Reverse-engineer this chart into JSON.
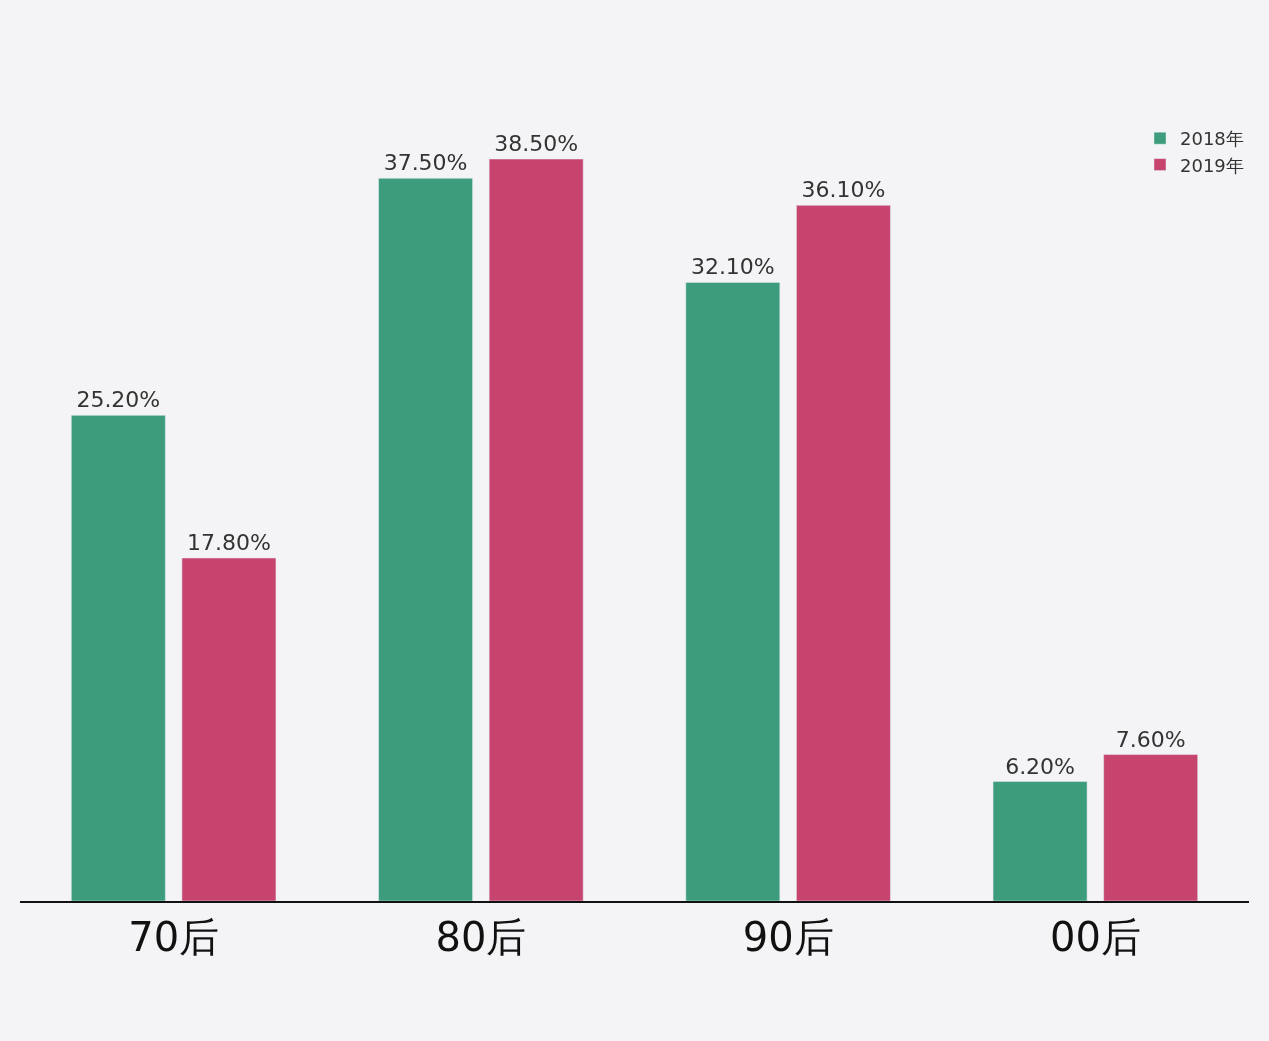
{
  "chart_data": {
    "type": "bar",
    "categories": [
      "70后",
      "80后",
      "90后",
      "00后"
    ],
    "series": [
      {
        "name": "2018年",
        "color": "#3d9c7c",
        "values": [
          25.2,
          37.5,
          32.1,
          6.2
        ],
        "value_labels": [
          "25.20%",
          "37.50%",
          "32.10%",
          "6.20%"
        ]
      },
      {
        "name": "2019年",
        "color": "#c7446f",
        "values": [
          17.8,
          38.5,
          36.1,
          7.6
        ],
        "value_labels": [
          "17.80%",
          "38.50%",
          "36.10%",
          "7.60%"
        ]
      }
    ],
    "legend": "top right",
    "grid": false
  }
}
